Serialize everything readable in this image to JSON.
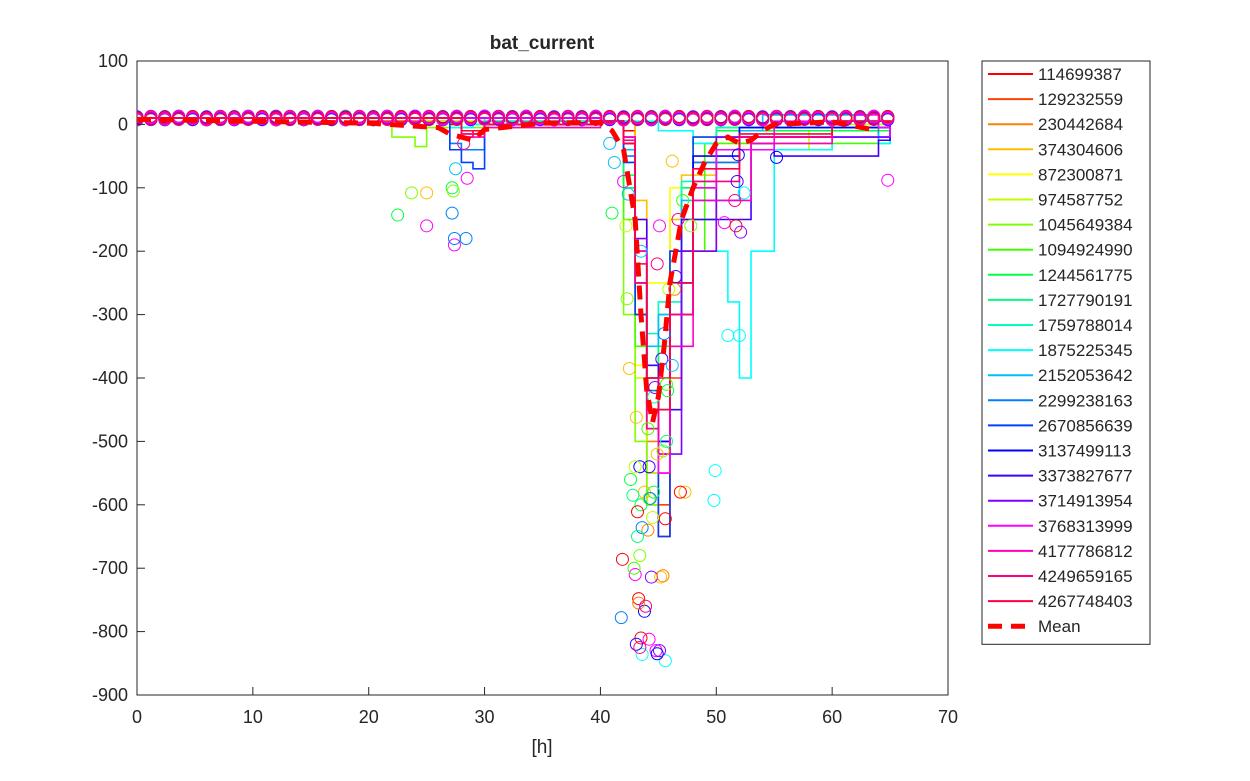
{
  "chart_data": {
    "type": "line",
    "title": "bat_current",
    "xlabel": "[h]",
    "ylabel": "",
    "xlim": [
      0,
      70
    ],
    "ylim": [
      -900,
      100
    ],
    "xticks": [
      0,
      10,
      20,
      30,
      40,
      50,
      60,
      70
    ],
    "yticks": [
      100,
      0,
      -100,
      -200,
      -300,
      -400,
      -500,
      -600,
      -700,
      -800,
      -900
    ],
    "grid": false,
    "legend_position": "outside-right",
    "series": [
      {
        "name": "114699387",
        "color": "#ff0000",
        "x": [
          0,
          20,
          27,
          28,
          29,
          30,
          40,
          42,
          43,
          44,
          45,
          46,
          50,
          55,
          60,
          65
        ],
        "y": [
          10,
          5,
          0,
          -20,
          -10,
          0,
          5,
          -10,
          -300,
          -600,
          -650,
          -200,
          -10,
          -5,
          5,
          0
        ]
      },
      {
        "name": "129232559",
        "color": "#ff4000",
        "x": [
          0,
          20,
          28,
          30,
          40,
          43,
          44,
          45,
          46,
          47,
          50,
          60,
          65
        ],
        "y": [
          10,
          5,
          -15,
          0,
          5,
          -200,
          -550,
          -600,
          -400,
          -150,
          -5,
          5,
          0
        ]
      },
      {
        "name": "230442684",
        "color": "#ff8000",
        "x": [
          0,
          25,
          30,
          40,
          43,
          44,
          45,
          46,
          48,
          52,
          60,
          65
        ],
        "y": [
          10,
          5,
          0,
          5,
          -150,
          -500,
          -550,
          -300,
          -60,
          -20,
          5,
          -5
        ]
      },
      {
        "name": "374304606",
        "color": "#ffbf00",
        "x": [
          0,
          25,
          40,
          43,
          44,
          45,
          46,
          47,
          50,
          60,
          65
        ],
        "y": [
          10,
          5,
          5,
          -120,
          -450,
          -300,
          -150,
          -80,
          -10,
          5,
          5
        ]
      },
      {
        "name": "872300871",
        "color": "#ffff00",
        "x": [
          0,
          30,
          40,
          42,
          43,
          44,
          46,
          48,
          55,
          65
        ],
        "y": [
          10,
          5,
          5,
          -20,
          -380,
          -250,
          -100,
          -30,
          -5,
          5
        ]
      },
      {
        "name": "974587752",
        "color": "#bfff00",
        "x": [
          0,
          25,
          40,
          42,
          43,
          44,
          45,
          46,
          48,
          50,
          58,
          60,
          65
        ],
        "y": [
          10,
          5,
          5,
          -30,
          -400,
          -550,
          -450,
          -200,
          -20,
          -10,
          -40,
          0,
          5
        ]
      },
      {
        "name": "1045649384",
        "color": "#80ff00",
        "x": [
          0,
          22,
          24,
          25,
          40,
          42,
          43,
          44,
          45,
          47,
          50,
          65
        ],
        "y": [
          10,
          -20,
          -35,
          -5,
          5,
          -300,
          -500,
          -600,
          -450,
          -100,
          -5,
          5
        ]
      },
      {
        "name": "1094924990",
        "color": "#40ff00",
        "x": [
          0,
          28,
          30,
          40,
          42,
          43,
          44,
          45,
          46,
          49,
          65
        ],
        "y": [
          10,
          -10,
          0,
          5,
          -150,
          -350,
          -450,
          -400,
          -200,
          -30,
          5
        ]
      },
      {
        "name": "1244561775",
        "color": "#00ff40",
        "x": [
          0,
          30,
          40,
          42,
          43,
          44,
          45,
          47,
          50,
          65
        ],
        "y": [
          10,
          5,
          5,
          -100,
          -300,
          -400,
          -350,
          -150,
          -10,
          0
        ]
      },
      {
        "name": "1727790191",
        "color": "#00ff80",
        "x": [
          0,
          30,
          40,
          42,
          43,
          44,
          45,
          47,
          50,
          65
        ],
        "y": [
          10,
          5,
          5,
          -80,
          -250,
          -380,
          -300,
          -100,
          -5,
          5
        ]
      },
      {
        "name": "1759788014",
        "color": "#00ffbf",
        "x": [
          0,
          30,
          40,
          42,
          43,
          44,
          45,
          47,
          50,
          65
        ],
        "y": [
          10,
          5,
          5,
          -60,
          -200,
          -330,
          -280,
          -90,
          -5,
          5
        ]
      },
      {
        "name": "1875225345",
        "color": "#00ffff",
        "x": [
          0,
          27,
          29,
          40,
          45,
          48,
          50,
          51,
          52,
          53,
          55,
          60,
          64,
          65
        ],
        "y": [
          10,
          -5,
          0,
          5,
          -10,
          -30,
          -200,
          -280,
          -400,
          -200,
          -40,
          5,
          -30,
          -10
        ]
      },
      {
        "name": "2152053642",
        "color": "#00bfff",
        "x": [
          0,
          40,
          42,
          43,
          44,
          45,
          47,
          52,
          54,
          63,
          64,
          65
        ],
        "y": [
          10,
          5,
          -40,
          -200,
          -350,
          -300,
          -120,
          -10,
          15,
          5,
          -25,
          -10
        ]
      },
      {
        "name": "2299238163",
        "color": "#0080ff",
        "x": [
          0,
          27,
          28,
          30,
          40,
          42,
          43,
          44,
          45,
          46,
          48,
          52,
          65
        ],
        "y": [
          10,
          -30,
          -40,
          0,
          5,
          -50,
          -250,
          -420,
          -500,
          -300,
          -60,
          -5,
          5
        ]
      },
      {
        "name": "2670856639",
        "color": "#0040ff",
        "x": [
          0,
          27,
          28,
          29,
          30,
          40,
          42,
          43,
          44,
          45,
          46,
          48,
          65
        ],
        "y": [
          10,
          -40,
          -60,
          -70,
          0,
          5,
          -60,
          -300,
          -480,
          -650,
          -200,
          -20,
          5
        ]
      },
      {
        "name": "3137499113",
        "color": "#0000ff",
        "x": [
          0,
          40,
          42,
          43,
          44,
          45,
          46,
          48,
          52,
          65
        ],
        "y": [
          10,
          5,
          -30,
          -200,
          -400,
          -500,
          -250,
          -50,
          -5,
          5
        ]
      },
      {
        "name": "3373827677",
        "color": "#4000ff",
        "x": [
          0,
          40,
          42,
          43,
          44,
          45,
          47,
          53,
          55,
          64,
          65
        ],
        "y": [
          10,
          5,
          -20,
          -150,
          -380,
          -450,
          -150,
          -30,
          -50,
          -25,
          -10
        ]
      },
      {
        "name": "3714913954",
        "color": "#8000ff",
        "x": [
          0,
          40,
          42,
          43,
          44,
          45,
          47,
          50,
          65
        ],
        "y": [
          10,
          5,
          -30,
          -180,
          -420,
          -520,
          -200,
          -20,
          5
        ]
      },
      {
        "name": "3768313999",
        "color": "#ff00ff",
        "x": [
          0,
          40,
          42,
          43,
          44,
          45,
          46,
          48,
          50,
          55,
          62,
          64,
          65
        ],
        "y": [
          10,
          5,
          -30,
          -250,
          -450,
          -550,
          -300,
          -100,
          -40,
          5,
          15,
          -5,
          -20
        ]
      },
      {
        "name": "4177786812",
        "color": "#ff00bf",
        "x": [
          0,
          28,
          30,
          40,
          42,
          43,
          44,
          45,
          46,
          48,
          53,
          60,
          65
        ],
        "y": [
          10,
          -20,
          -5,
          5,
          -20,
          -200,
          -450,
          -520,
          -350,
          -120,
          -30,
          5,
          0
        ]
      },
      {
        "name": "4249659165",
        "color": "#ff0080",
        "x": [
          0,
          28,
          30,
          40,
          42,
          43,
          44,
          45,
          46,
          48,
          52,
          60,
          65
        ],
        "y": [
          10,
          -15,
          0,
          5,
          -25,
          -250,
          -480,
          -400,
          -300,
          -90,
          -20,
          5,
          0
        ]
      },
      {
        "name": "4267748403",
        "color": "#ff0040",
        "x": [
          0,
          28,
          30,
          40,
          42,
          43,
          44,
          45,
          46,
          48,
          52,
          60,
          65
        ],
        "y": [
          10,
          -10,
          0,
          5,
          -30,
          -220,
          -400,
          -450,
          -250,
          -70,
          -15,
          5,
          0
        ]
      },
      {
        "name": "Mean",
        "color": "#ff0000",
        "dashed": true,
        "x": [
          0,
          20,
          26,
          27,
          28,
          29,
          30,
          35,
          40,
          41,
          42,
          43,
          43.5,
          44,
          44.5,
          45,
          45.5,
          46,
          46.5,
          47,
          48,
          49,
          50,
          51,
          52,
          53,
          54,
          55,
          60,
          64
        ],
        "y": [
          8,
          2,
          -5,
          -15,
          -20,
          -25,
          -8,
          2,
          3,
          -10,
          -40,
          -150,
          -300,
          -420,
          -470,
          -430,
          -350,
          -250,
          -200,
          -150,
          -100,
          -60,
          -30,
          -20,
          -30,
          -25,
          -10,
          0,
          4,
          -10
        ]
      }
    ],
    "scatter": [
      {
        "color": "#00ff40",
        "x": [
          22.5,
          27.2,
          41,
          42.6,
          43.5,
          44.6,
          45.8
        ],
        "y": [
          -143,
          -100,
          -140,
          -560,
          -600,
          -580,
          -420
        ]
      },
      {
        "color": "#80ff00",
        "x": [
          23.7,
          27.3,
          42.3,
          43.4,
          44.2,
          45.4,
          47.8
        ],
        "y": [
          -108,
          -105,
          -275,
          -680,
          -590,
          -515,
          -160
        ]
      },
      {
        "color": "#ffbf00",
        "x": [
          25,
          42.5,
          43.1,
          43.8,
          44.9,
          46.2,
          47.3,
          45.2
        ],
        "y": [
          -108,
          -385,
          -462,
          -580,
          -520,
          -58,
          -580,
          -714
        ]
      },
      {
        "color": "#ff00ff",
        "x": [
          25,
          27.4,
          28.5,
          42,
          43,
          44.2,
          44.8,
          45.1,
          50.7,
          64.8
        ],
        "y": [
          -160,
          -190,
          -85,
          -90,
          -710,
          -812,
          -830,
          -160,
          -155,
          -88
        ]
      },
      {
        "color": "#0080ff",
        "x": [
          27.2,
          27.4,
          28.4,
          41.8,
          43.6,
          44.3,
          45.5
        ],
        "y": [
          -140,
          -180,
          -180,
          -778,
          -636,
          -590,
          -330
        ]
      },
      {
        "color": "#00ffff",
        "x": [
          49.9,
          49.8,
          51,
          52,
          52.4,
          45.6,
          43.6
        ],
        "y": [
          -546,
          -593,
          -333,
          -333,
          -108,
          -846,
          -836
        ]
      },
      {
        "color": "#0000ff",
        "x": [
          43.8,
          44.9,
          51.9,
          55.2,
          43.4
        ],
        "y": [
          -768,
          -835,
          -48,
          -52,
          -540
        ]
      },
      {
        "color": "#ff0000",
        "x": [
          41.9,
          43.2,
          43.3,
          43.5,
          45.6,
          46.9,
          51.7
        ],
        "y": [
          -686,
          -611,
          -748,
          -810,
          -622,
          -580,
          -160
        ]
      },
      {
        "color": "#8000ff",
        "x": [
          44.4,
          45.1,
          44.7,
          52.1
        ],
        "y": [
          -714,
          -830,
          -415,
          -170
        ]
      },
      {
        "color": "#ff8000",
        "x": [
          43.3,
          45.4,
          46.4,
          44.1
        ],
        "y": [
          -755,
          -712,
          -260,
          -640
        ]
      },
      {
        "color": "#00ff80",
        "x": [
          42.8,
          43.2,
          44.6,
          45.7
        ],
        "y": [
          -585,
          -650,
          -430,
          -500
        ]
      },
      {
        "color": "#4000ff",
        "x": [
          43.1,
          44.2,
          45.3,
          46.5,
          51.8
        ],
        "y": [
          -820,
          -540,
          -370,
          -240,
          -90
        ]
      },
      {
        "color": "#00bfff",
        "x": [
          27.5,
          40.8,
          41.2,
          42.4,
          43.5,
          46.2
        ],
        "y": [
          -70,
          -30,
          -60,
          -110,
          -200,
          -380
        ]
      },
      {
        "color": "#ff0080",
        "x": [
          43.4,
          43.9,
          44.9,
          46.7,
          51.6,
          28.2
        ],
        "y": [
          -825,
          -760,
          -220,
          -150,
          -120,
          -30
        ]
      },
      {
        "color": "#40ff00",
        "x": [
          42.9,
          44.1,
          45.7,
          47.1
        ],
        "y": [
          -700,
          -480,
          -410,
          -120
        ]
      },
      {
        "color": "#bfff00",
        "x": [
          43.0,
          44.5,
          45.9,
          42.2
        ],
        "y": [
          -540,
          -620,
          -260,
          -160
        ]
      }
    ]
  }
}
